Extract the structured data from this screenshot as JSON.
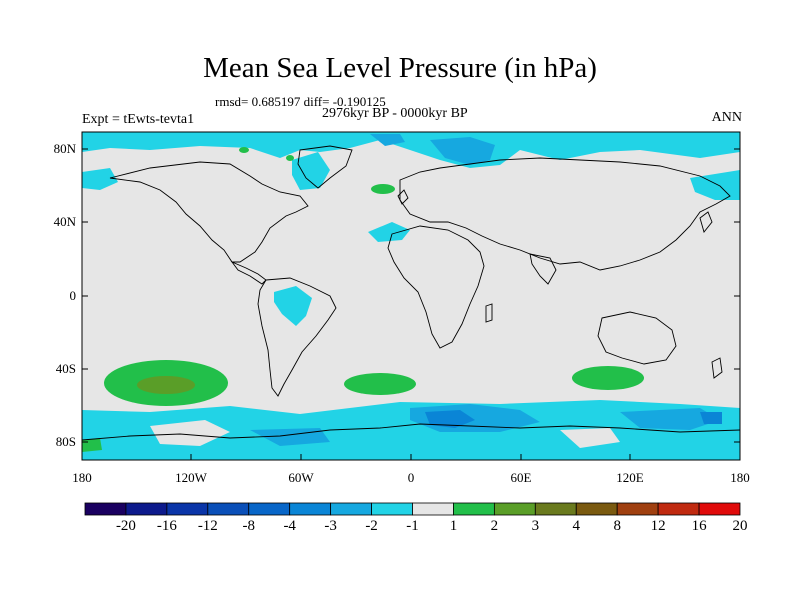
{
  "title": "Mean Sea Level Pressure (in hPa)",
  "stats": "rmsd= 0.685197 diff= -0.190125",
  "period": "2976kyr BP - 0000kyr BP",
  "expt": "Expt = tEwts-tevta1",
  "season": "ANN",
  "lat_labels": [
    "80N",
    "40N",
    "0",
    "40S",
    "80S"
  ],
  "lon_labels": [
    "180",
    "120W",
    "60W",
    "0",
    "60E",
    "120E",
    "180"
  ],
  "colorbar": {
    "labels": [
      "-20",
      "-16",
      "-12",
      "-8",
      "-4",
      "-3",
      "-2",
      "-1",
      "1",
      "2",
      "3",
      "4",
      "8",
      "12",
      "16",
      "20"
    ],
    "colors": [
      "#1a0060",
      "#0d1a8c",
      "#0a35a8",
      "#0a4fb8",
      "#0866c8",
      "#0a85d6",
      "#16a8e0",
      "#22d3e6",
      "#e6e6e6",
      "#22bf4a",
      "#5a9e28",
      "#6a7a1e",
      "#7a5a10",
      "#a04010",
      "#c02a10",
      "#e00a0a"
    ]
  },
  "colors": {
    "background": "#e6e6e6",
    "neg1": "#22d3e6",
    "neg2": "#16a8e0",
    "neg3": "#0a85d6",
    "pos1": "#22bf4a",
    "pos2": "#5a9e28"
  }
}
